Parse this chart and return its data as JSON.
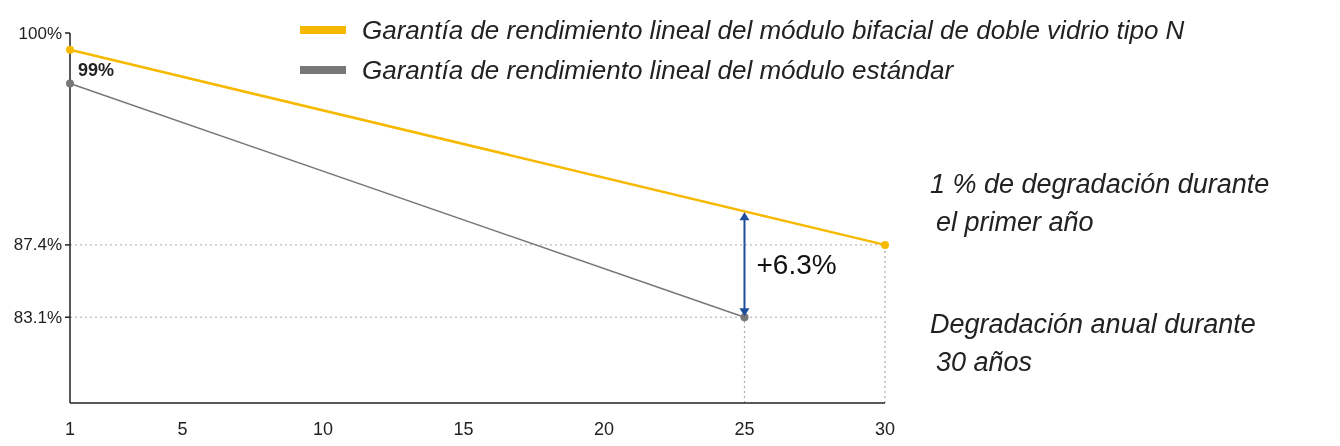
{
  "chart_data": {
    "type": "line",
    "legend": "top",
    "xlim": [
      1,
      30
    ],
    "xticks": [
      1,
      5,
      10,
      15,
      20,
      25,
      30
    ],
    "ylim": [
      78,
      100
    ],
    "yticks": [
      {
        "value": 100,
        "label": "100%"
      },
      {
        "value": 87.4,
        "label": "87.4%"
      },
      {
        "value": 83.1,
        "label": "83.1%"
      }
    ],
    "grid": false,
    "marker": "circle",
    "line_style": "solid",
    "series": [
      {
        "name": "Garantía de rendimiento lineal del módulo bifacial de doble vidrio tipo N",
        "color": "#f7b900",
        "x": [
          1,
          30
        ],
        "values": [
          99,
          87.4
        ],
        "value_labels": [
          "99%",
          null
        ]
      },
      {
        "name": "Garantía de rendimiento lineal del módulo estándar",
        "color": "#777777",
        "x": [
          1,
          25
        ],
        "values": [
          97,
          83.1
        ]
      }
    ],
    "ref_lines": [
      {
        "axis": "y",
        "value": 87.4,
        "label": null,
        "color": "#aaaaaa",
        "line_style": "dotted"
      },
      {
        "axis": "y",
        "value": 83.1,
        "label": null,
        "color": "#aaaaaa",
        "line_style": "dotted"
      },
      {
        "axis": "x",
        "value": 25,
        "label": null,
        "color": "#aaaaaa",
        "line_style": "dotted"
      },
      {
        "axis": "x",
        "value": 30,
        "label": null,
        "color": "#aaaaaa",
        "line_style": "dotted"
      }
    ],
    "annotations": [
      {
        "text": "+6.3%",
        "x": 25,
        "y": 86.25
      },
      "1 % de degradación durante el primer año",
      "Degradación anual durante 30 años"
    ]
  }
}
